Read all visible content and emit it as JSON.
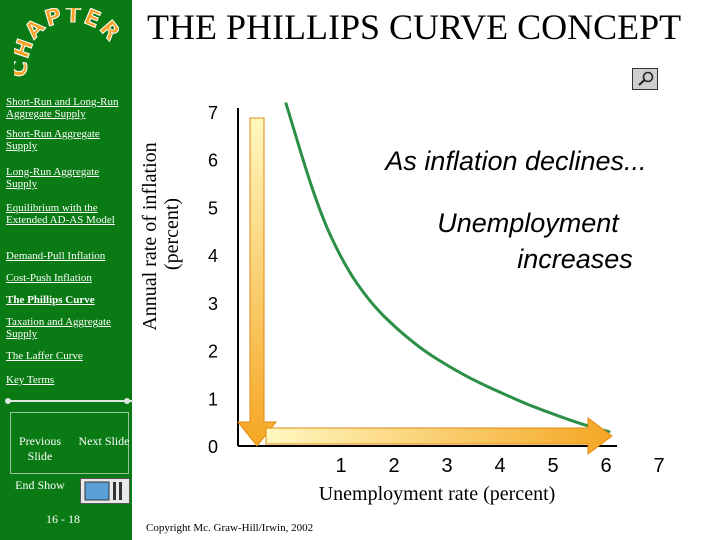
{
  "slide": {
    "title": "THE PHILLIPS CURVE CONCEPT",
    "chapter_logo": "CHAPTER",
    "page_number": "16 - 18",
    "copyright": "Copyright Mc. Graw-Hill/Irwin, 2002"
  },
  "sidebar": {
    "items": [
      {
        "label": "Short-Run and Long-Run Aggregate Supply"
      },
      {
        "label": "Short-Run Aggregate Supply"
      },
      {
        "label": "Long-Run Aggregate Supply"
      },
      {
        "label": "Equilibrium with the Extended AD-AS Model"
      },
      {
        "label": "Demand-Pull Inflation"
      },
      {
        "label": "Cost-Push Inflation"
      },
      {
        "label": "The Phillips Curve"
      },
      {
        "label": "Taxation and Aggregate Supply"
      },
      {
        "label": "The Laffer Curve"
      }
    ],
    "key_terms": "Key Terms",
    "prev_label": "Previous Slide",
    "next_label": "Next Slide",
    "end_label": "End Show"
  },
  "icons": {
    "magnifier": "magnifier-icon",
    "end_show": "end-show-icon",
    "arrow_down": "arrow-down-icon",
    "arrow_right": "arrow-right-icon"
  },
  "colors": {
    "sidebar_bg": "#0a7a14",
    "arrow_fill_top": "#fff5a8",
    "arrow_fill_bottom": "#f5a623",
    "curve": "#2c8f46"
  },
  "chart_data": {
    "type": "line",
    "title": "",
    "xlabel": "Unemployment rate (percent)",
    "ylabel": "Annual rate of inflation (percent)",
    "x_ticks": [
      "1",
      "2",
      "3",
      "4",
      "5",
      "6",
      "7"
    ],
    "y_ticks": [
      "0",
      "1",
      "2",
      "3",
      "4",
      "5",
      "6",
      "7"
    ],
    "xlim": [
      0,
      7
    ],
    "ylim": [
      0,
      7
    ],
    "series": [
      {
        "x": [
          0.9,
          1.5,
          2.0,
          2.5,
          3.0,
          3.5,
          4.0,
          4.5,
          5.0,
          5.5,
          6.0,
          6.5,
          7.0
        ],
        "y": [
          7.2,
          5.0,
          3.8,
          3.0,
          2.45,
          2.0,
          1.65,
          1.35,
          1.1,
          0.85,
          0.65,
          0.45,
          0.3
        ]
      }
    ],
    "annotations": [
      {
        "text": "As inflation declines..."
      },
      {
        "text": "Unemployment increases"
      }
    ]
  }
}
